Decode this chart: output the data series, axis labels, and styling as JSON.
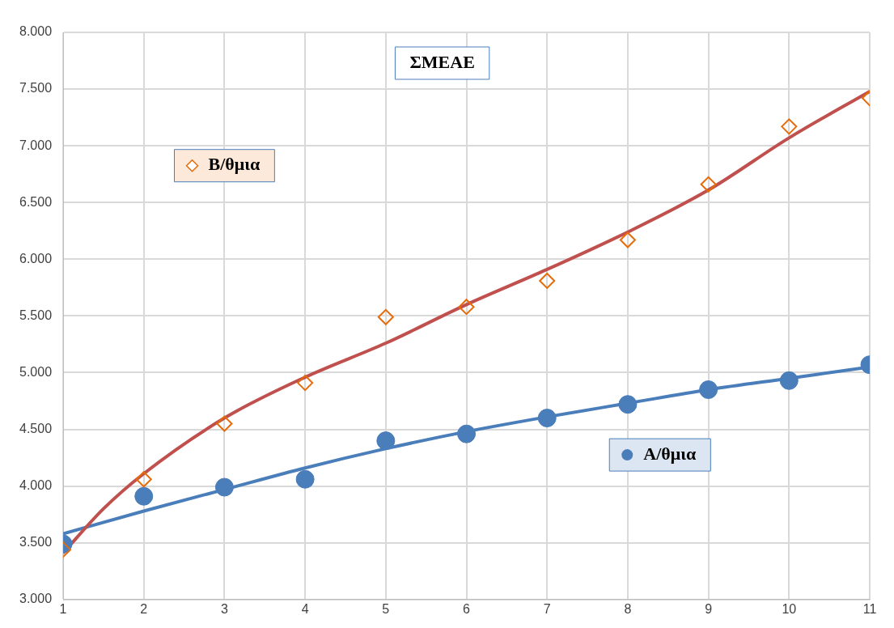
{
  "chart_data": {
    "type": "scatter",
    "title": "ΣΜΕΑΕ",
    "xlim": [
      1,
      11
    ],
    "xticks": [
      1,
      2,
      3,
      4,
      5,
      6,
      7,
      8,
      9,
      10,
      11
    ],
    "ylim": [
      3000,
      8000
    ],
    "yticks": [
      {
        "value": 3000,
        "label": "3.000"
      },
      {
        "value": 3500,
        "label": "3.500"
      },
      {
        "value": 4000,
        "label": "4.000"
      },
      {
        "value": 4500,
        "label": "4.500"
      },
      {
        "value": 5000,
        "label": "5.000"
      },
      {
        "value": 5500,
        "label": "5.500"
      },
      {
        "value": 6000,
        "label": "6.000"
      },
      {
        "value": 6500,
        "label": "6.500"
      },
      {
        "value": 7000,
        "label": "7.000"
      },
      {
        "value": 7500,
        "label": "7.500"
      },
      {
        "value": 8000,
        "label": "8.000"
      }
    ],
    "grid": true,
    "legend": "top left",
    "series": [
      {
        "name": "Β/θμια",
        "type": "scatter",
        "marker": "diamond",
        "color": "#e46c0a",
        "x": [
          1,
          2,
          3,
          4,
          5,
          6,
          7,
          8,
          9,
          10,
          11
        ],
        "values": [
          3440,
          4060,
          4550,
          4910,
          5490,
          5580,
          5810,
          6170,
          6660,
          7170,
          7420
        ]
      },
      {
        "name": "Α/θμια",
        "type": "scatter",
        "marker": "circle",
        "color": "#4a7ebb",
        "x": [
          1,
          2,
          3,
          4,
          5,
          6,
          7,
          8,
          9,
          10,
          11
        ],
        "values": [
          3490,
          3910,
          3990,
          4060,
          4400,
          4460,
          4600,
          4720,
          4850,
          4930,
          5070
        ]
      },
      {
        "type": "line",
        "marker": "none",
        "color": "#c0504d",
        "x": [
          1,
          1.5,
          2,
          3,
          4,
          5,
          6,
          7,
          8,
          9,
          10,
          11
        ],
        "values": [
          3410,
          3800,
          4110,
          4600,
          4960,
          5260,
          5600,
          5910,
          6240,
          6610,
          7070,
          7480
        ]
      },
      {
        "type": "line",
        "marker": "none",
        "color": "#4a7ebb",
        "x": [
          1,
          2,
          3,
          4,
          5,
          6,
          7,
          8,
          9,
          10,
          11
        ],
        "values": [
          3580,
          3780,
          3970,
          4160,
          4330,
          4480,
          4610,
          4730,
          4850,
          4950,
          5050
        ]
      }
    ]
  }
}
